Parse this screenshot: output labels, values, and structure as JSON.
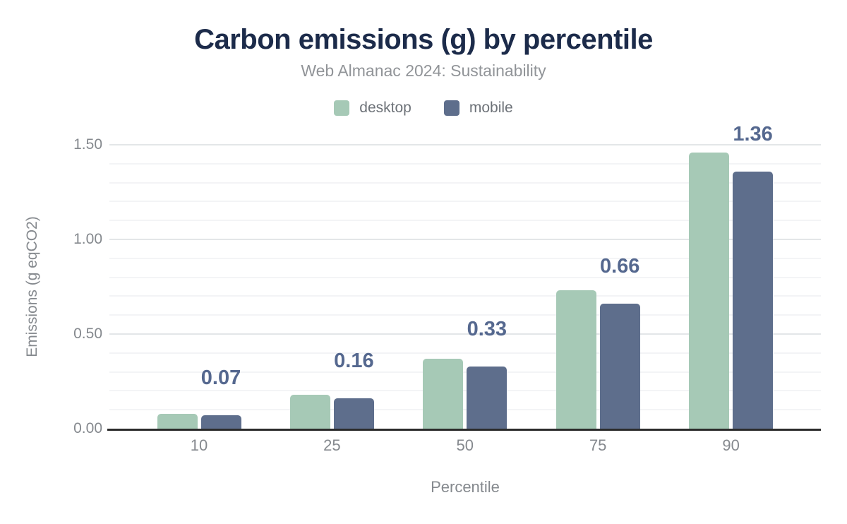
{
  "chart_data": {
    "type": "bar",
    "title": "Carbon emissions (g) by percentile",
    "subtitle": "Web Almanac 2024: Sustainability",
    "xlabel": "Percentile",
    "ylabel": "Emissions (g eqCO2)",
    "categories": [
      "10",
      "25",
      "50",
      "75",
      "90"
    ],
    "series": [
      {
        "name": "desktop",
        "color": "#a6c9b6",
        "values": [
          0.08,
          0.18,
          0.37,
          0.73,
          1.46
        ]
      },
      {
        "name": "mobile",
        "color": "#5e6e8c",
        "values": [
          0.07,
          0.16,
          0.33,
          0.66,
          1.36
        ],
        "data_labels": [
          "0.07",
          "0.16",
          "0.33",
          "0.66",
          "1.36"
        ]
      }
    ],
    "data_labels_on_series": "mobile",
    "ylim": [
      0,
      1.5
    ],
    "yticks": [
      {
        "value": 0.0,
        "label": "0.00"
      },
      {
        "value": 0.5,
        "label": "0.50"
      },
      {
        "value": 1.0,
        "label": "1.00"
      },
      {
        "value": 1.5,
        "label": "1.50"
      }
    ],
    "minor_grid_step": 0.1,
    "grid": true,
    "legend_position": "top"
  },
  "colors": {
    "title": "#1c2b4a",
    "subtitle": "#919498",
    "desktop_series": "#a6c9b6",
    "mobile_series": "#5e6e8c",
    "value_label": "#55688f",
    "axis_line": "#2b2b2b",
    "tick_text": "#85898e",
    "major_gridline": "#e3e6e8",
    "minor_gridline": "#f3f4f6"
  }
}
